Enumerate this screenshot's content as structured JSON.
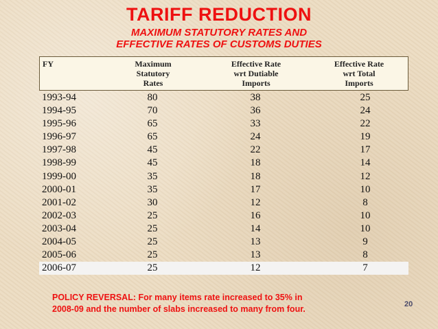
{
  "title": "TARIFF REDUCTION",
  "subtitle_line1": "MAXIMUM STATUTORY RATES AND",
  "subtitle_line2": "EFFECTIVE RATES OF CUSTOMS DUTIES",
  "table": {
    "headers": {
      "fy": "FY",
      "max": [
        "Maximum",
        "Statutory",
        "Rates"
      ],
      "eff_dutiable": [
        "Effective Rate",
        "wrt Dutiable",
        "Imports"
      ],
      "eff_total": [
        "Effective Rate",
        "wrt Total",
        "Imports"
      ]
    },
    "rows": [
      {
        "fy": "1993-94",
        "max": "80",
        "eff_dutiable": "38",
        "eff_total": "25"
      },
      {
        "fy": "1994-95",
        "max": "70",
        "eff_dutiable": "36",
        "eff_total": "24"
      },
      {
        "fy": "1995-96",
        "max": "65",
        "eff_dutiable": "33",
        "eff_total": "22"
      },
      {
        "fy": "1996-97",
        "max": "65",
        "eff_dutiable": "24",
        "eff_total": "19"
      },
      {
        "fy": "1997-98",
        "max": "45",
        "eff_dutiable": "22",
        "eff_total": "17"
      },
      {
        "fy": "1998-99",
        "max": "45",
        "eff_dutiable": "18",
        "eff_total": "14"
      },
      {
        "fy": "1999-00",
        "max": "35",
        "eff_dutiable": "18",
        "eff_total": "12"
      },
      {
        "fy": "2000-01",
        "max": "35",
        "eff_dutiable": "17",
        "eff_total": "10"
      },
      {
        "fy": "2001-02",
        "max": "30",
        "eff_dutiable": "12",
        "eff_total": "8"
      },
      {
        "fy": "2002-03",
        "max": "25",
        "eff_dutiable": "16",
        "eff_total": "10"
      },
      {
        "fy": "2003-04",
        "max": "25",
        "eff_dutiable": "14",
        "eff_total": "10"
      },
      {
        "fy": "2004-05",
        "max": "25",
        "eff_dutiable": "13",
        "eff_total": "9"
      },
      {
        "fy": "2005-06",
        "max": "25",
        "eff_dutiable": "13",
        "eff_total": "8"
      },
      {
        "fy": "2006-07",
        "max": "25",
        "eff_dutiable": "12",
        "eff_total": "7"
      }
    ]
  },
  "footnote_line1": "POLICY REVERSAL: For many items rate increased to 35% in",
  "footnote_line2": "2008-09 and the number of slabs increased to many from four.",
  "page_number": "20"
}
